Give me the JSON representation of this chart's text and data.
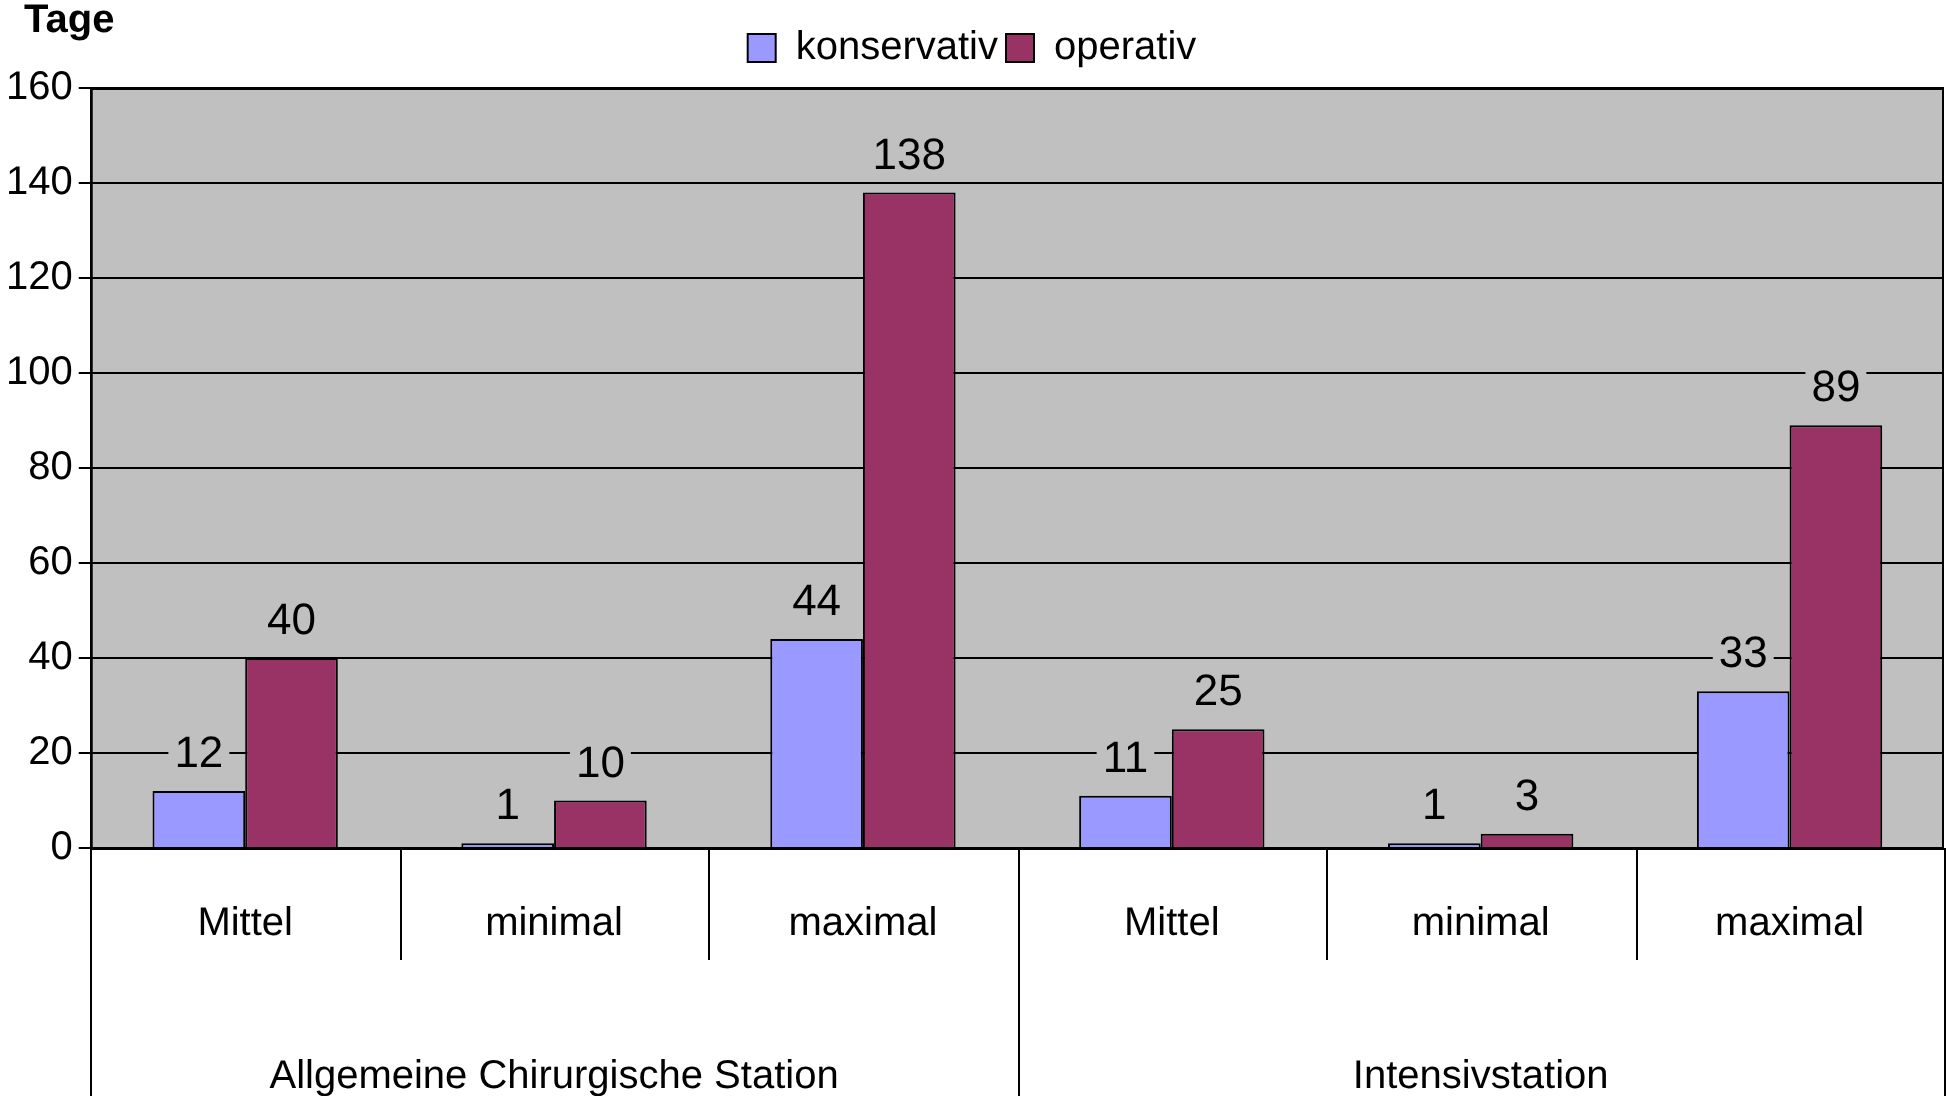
{
  "chart_data": {
    "type": "bar",
    "ylabel": "Tage",
    "categories": [
      "Mittel",
      "minimal",
      "maximal",
      "Mittel",
      "minimal",
      "maximal"
    ],
    "series": [
      {
        "name": "konservativ",
        "color": "#9999ff",
        "values": [
          12,
          1,
          44,
          11,
          1,
          33
        ]
      },
      {
        "name": "operativ",
        "color": "#993366",
        "values": [
          40,
          10,
          138,
          25,
          3,
          89
        ]
      }
    ],
    "ylim": [
      0,
      160
    ],
    "yticks": [
      0,
      20,
      40,
      60,
      80,
      100,
      120,
      140,
      160
    ],
    "grid": "y",
    "legend": "top",
    "data_labels": true,
    "annotations": [
      "Allgemeine Chirurgische Station",
      "Intensivstation"
    ]
  }
}
